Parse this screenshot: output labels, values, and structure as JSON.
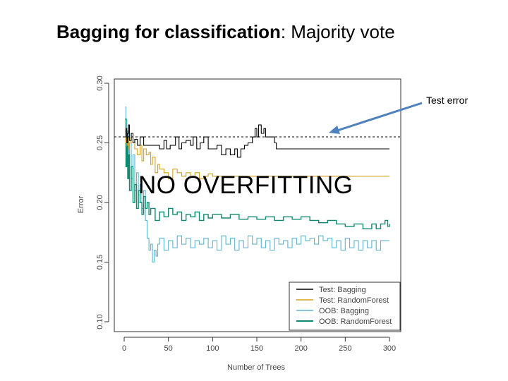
{
  "slide": {
    "title_bold": "Bagging for classification",
    "title_rest": ": Majority vote",
    "callout_label": "Test error",
    "overlay_text": "NO OVERFITTING"
  },
  "colors": {
    "test_bagging": "#000000",
    "test_rf": "#d4a21a",
    "oob_bagging": "#5fb3cf",
    "oob_rf": "#0e8a72",
    "arrow": "#4f81bd"
  },
  "chart_data": {
    "type": "line",
    "xlabel": "Number of Trees",
    "ylabel": "Error",
    "xlim": [
      0,
      300
    ],
    "ylim": [
      0.1,
      0.3
    ],
    "xticks": [
      "0",
      "50",
      "100",
      "150",
      "200",
      "250",
      "300"
    ],
    "yticks": [
      "0.10",
      "0.15",
      "0.20",
      "0.25",
      "0.30"
    ],
    "grid": false,
    "legend_position": "bottom-right",
    "reference_line": {
      "y": 0.255,
      "style": "dashed"
    },
    "series": [
      {
        "name": "Test: Bagging",
        "color": "#000000",
        "points": [
          [
            1,
            0.255
          ],
          [
            2,
            0.262
          ],
          [
            3,
            0.25
          ],
          [
            4,
            0.258
          ],
          [
            5,
            0.265
          ],
          [
            6,
            0.252
          ],
          [
            8,
            0.258
          ],
          [
            10,
            0.25
          ],
          [
            12,
            0.253
          ],
          [
            15,
            0.248
          ],
          [
            18,
            0.255
          ],
          [
            22,
            0.248
          ],
          [
            26,
            0.248
          ],
          [
            30,
            0.248
          ],
          [
            35,
            0.248
          ],
          [
            40,
            0.245
          ],
          [
            45,
            0.252
          ],
          [
            48,
            0.245
          ],
          [
            52,
            0.248
          ],
          [
            58,
            0.255
          ],
          [
            62,
            0.245
          ],
          [
            65,
            0.25
          ],
          [
            70,
            0.252
          ],
          [
            75,
            0.248
          ],
          [
            78,
            0.255
          ],
          [
            82,
            0.245
          ],
          [
            86,
            0.25
          ],
          [
            90,
            0.255
          ],
          [
            95,
            0.245
          ],
          [
            100,
            0.245
          ],
          [
            105,
            0.248
          ],
          [
            110,
            0.24
          ],
          [
            115,
            0.245
          ],
          [
            120,
            0.24
          ],
          [
            125,
            0.245
          ],
          [
            128,
            0.238
          ],
          [
            132,
            0.245
          ],
          [
            136,
            0.248
          ],
          [
            140,
            0.25
          ],
          [
            145,
            0.255
          ],
          [
            148,
            0.262
          ],
          [
            150,
            0.255
          ],
          [
            152,
            0.265
          ],
          [
            155,
            0.258
          ],
          [
            158,
            0.262
          ],
          [
            160,
            0.255
          ],
          [
            165,
            0.255
          ],
          [
            170,
            0.25
          ],
          [
            172,
            0.245
          ],
          [
            180,
            0.245
          ],
          [
            200,
            0.245
          ],
          [
            220,
            0.245
          ],
          [
            240,
            0.245
          ],
          [
            260,
            0.245
          ],
          [
            280,
            0.245
          ],
          [
            300,
            0.245
          ]
        ]
      },
      {
        "name": "Test: RandomForest",
        "color": "#d4a21a",
        "points": [
          [
            1,
            0.26
          ],
          [
            2,
            0.25
          ],
          [
            3,
            0.248
          ],
          [
            4,
            0.255
          ],
          [
            5,
            0.245
          ],
          [
            6,
            0.25
          ],
          [
            8,
            0.258
          ],
          [
            10,
            0.25
          ],
          [
            12,
            0.245
          ],
          [
            15,
            0.24
          ],
          [
            18,
            0.248
          ],
          [
            20,
            0.235
          ],
          [
            22,
            0.245
          ],
          [
            25,
            0.24
          ],
          [
            28,
            0.242
          ],
          [
            30,
            0.232
          ],
          [
            32,
            0.238
          ],
          [
            35,
            0.225
          ],
          [
            38,
            0.232
          ],
          [
            40,
            0.228
          ],
          [
            45,
            0.225
          ],
          [
            50,
            0.22
          ],
          [
            55,
            0.228
          ],
          [
            60,
            0.225
          ],
          [
            65,
            0.222
          ],
          [
            70,
            0.225
          ],
          [
            75,
            0.222
          ],
          [
            80,
            0.225
          ],
          [
            85,
            0.22
          ],
          [
            90,
            0.222
          ],
          [
            95,
            0.224
          ],
          [
            100,
            0.222
          ],
          [
            110,
            0.222
          ],
          [
            120,
            0.222
          ],
          [
            140,
            0.222
          ],
          [
            160,
            0.222
          ],
          [
            180,
            0.222
          ],
          [
            200,
            0.222
          ],
          [
            220,
            0.222
          ],
          [
            240,
            0.222
          ],
          [
            260,
            0.222
          ],
          [
            280,
            0.222
          ],
          [
            300,
            0.222
          ]
        ]
      },
      {
        "name": "OOB: Bagging",
        "color": "#5fb3cf",
        "points": [
          [
            1,
            0.28
          ],
          [
            2,
            0.27
          ],
          [
            3,
            0.24
          ],
          [
            4,
            0.26
          ],
          [
            5,
            0.23
          ],
          [
            6,
            0.25
          ],
          [
            8,
            0.22
          ],
          [
            10,
            0.24
          ],
          [
            12,
            0.21
          ],
          [
            14,
            0.225
          ],
          [
            16,
            0.2
          ],
          [
            18,
            0.215
          ],
          [
            20,
            0.195
          ],
          [
            22,
            0.21
          ],
          [
            24,
            0.185
          ],
          [
            26,
            0.17
          ],
          [
            28,
            0.16
          ],
          [
            30,
            0.165
          ],
          [
            32,
            0.15
          ],
          [
            34,
            0.16
          ],
          [
            36,
            0.155
          ],
          [
            38,
            0.165
          ],
          [
            40,
            0.17
          ],
          [
            45,
            0.16
          ],
          [
            50,
            0.168
          ],
          [
            55,
            0.162
          ],
          [
            60,
            0.172
          ],
          [
            65,
            0.165
          ],
          [
            70,
            0.17
          ],
          [
            75,
            0.162
          ],
          [
            80,
            0.168
          ],
          [
            85,
            0.165
          ],
          [
            90,
            0.17
          ],
          [
            95,
            0.162
          ],
          [
            100,
            0.168
          ],
          [
            105,
            0.16
          ],
          [
            110,
            0.172
          ],
          [
            115,
            0.165
          ],
          [
            120,
            0.17
          ],
          [
            125,
            0.16
          ],
          [
            130,
            0.168
          ],
          [
            135,
            0.162
          ],
          [
            140,
            0.172
          ],
          [
            145,
            0.165
          ],
          [
            150,
            0.17
          ],
          [
            155,
            0.162
          ],
          [
            160,
            0.168
          ],
          [
            165,
            0.16
          ],
          [
            170,
            0.17
          ],
          [
            175,
            0.165
          ],
          [
            180,
            0.168
          ],
          [
            185,
            0.162
          ],
          [
            190,
            0.17
          ],
          [
            195,
            0.165
          ],
          [
            200,
            0.172
          ],
          [
            205,
            0.168
          ],
          [
            210,
            0.17
          ],
          [
            215,
            0.165
          ],
          [
            220,
            0.172
          ],
          [
            225,
            0.168
          ],
          [
            230,
            0.17
          ],
          [
            235,
            0.162
          ],
          [
            240,
            0.168
          ],
          [
            245,
            0.16
          ],
          [
            250,
            0.17
          ],
          [
            255,
            0.162
          ],
          [
            260,
            0.168
          ],
          [
            265,
            0.16
          ],
          [
            270,
            0.168
          ],
          [
            275,
            0.162
          ],
          [
            280,
            0.168
          ],
          [
            285,
            0.16
          ],
          [
            290,
            0.168
          ],
          [
            295,
            0.168
          ],
          [
            300,
            0.168
          ]
        ]
      },
      {
        "name": "OOB: RandomForest",
        "color": "#0e8a72",
        "points": [
          [
            1,
            0.27
          ],
          [
            2,
            0.23
          ],
          [
            3,
            0.25
          ],
          [
            4,
            0.22
          ],
          [
            5,
            0.24
          ],
          [
            6,
            0.21
          ],
          [
            8,
            0.23
          ],
          [
            10,
            0.2
          ],
          [
            12,
            0.215
          ],
          [
            14,
            0.195
          ],
          [
            16,
            0.21
          ],
          [
            18,
            0.2
          ],
          [
            20,
            0.19
          ],
          [
            22,
            0.205
          ],
          [
            24,
            0.195
          ],
          [
            26,
            0.2
          ],
          [
            28,
            0.19
          ],
          [
            30,
            0.195
          ],
          [
            35,
            0.185
          ],
          [
            40,
            0.192
          ],
          [
            45,
            0.188
          ],
          [
            50,
            0.195
          ],
          [
            55,
            0.19
          ],
          [
            60,
            0.192
          ],
          [
            65,
            0.185
          ],
          [
            70,
            0.19
          ],
          [
            75,
            0.188
          ],
          [
            80,
            0.192
          ],
          [
            85,
            0.185
          ],
          [
            90,
            0.19
          ],
          [
            95,
            0.187
          ],
          [
            100,
            0.19
          ],
          [
            110,
            0.187
          ],
          [
            120,
            0.19
          ],
          [
            130,
            0.186
          ],
          [
            140,
            0.188
          ],
          [
            150,
            0.186
          ],
          [
            160,
            0.188
          ],
          [
            170,
            0.185
          ],
          [
            180,
            0.188
          ],
          [
            190,
            0.186
          ],
          [
            200,
            0.188
          ],
          [
            210,
            0.185
          ],
          [
            220,
            0.183
          ],
          [
            230,
            0.185
          ],
          [
            240,
            0.182
          ],
          [
            250,
            0.18
          ],
          [
            260,
            0.182
          ],
          [
            270,
            0.178
          ],
          [
            280,
            0.182
          ],
          [
            285,
            0.178
          ],
          [
            290,
            0.182
          ],
          [
            295,
            0.185
          ],
          [
            298,
            0.18
          ],
          [
            300,
            0.182
          ]
        ]
      }
    ]
  }
}
